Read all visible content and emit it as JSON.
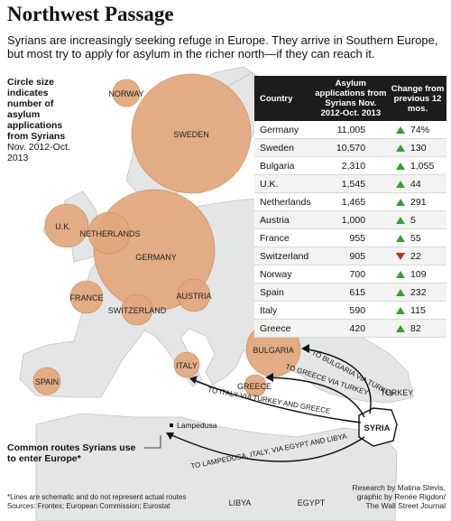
{
  "title": "Northwest Passage",
  "subtitle": "Syrians are increasingly seeking refuge in Europe. They arrive in Southern Europe, but most try to apply for asylum in the richer north—if they can reach it.",
  "key": {
    "heading": "Circle size indicates number of asylum applications from Syrians",
    "period": "Nov. 2012-Oct. 2013"
  },
  "table": {
    "headers": [
      "Country",
      "Asylum applications from Syrians Nov. 2012-Oct. 2013",
      "Change from previous 12 mos."
    ],
    "rows": [
      {
        "country": "Germany",
        "applications": "11,005",
        "change": "74%",
        "direction": "up"
      },
      {
        "country": "Sweden",
        "applications": "10,570",
        "change": "130",
        "direction": "up"
      },
      {
        "country": "Bulgaria",
        "applications": "2,310",
        "change": "1,055",
        "direction": "up"
      },
      {
        "country": "U.K.",
        "applications": "1,545",
        "change": "44",
        "direction": "up"
      },
      {
        "country": "Netherlands",
        "applications": "1,465",
        "change": "291",
        "direction": "up"
      },
      {
        "country": "Austria",
        "applications": "1,000",
        "change": "5",
        "direction": "up"
      },
      {
        "country": "France",
        "applications": "955",
        "change": "55",
        "direction": "up"
      },
      {
        "country": "Switzerland",
        "applications": "905",
        "change": "22",
        "direction": "down"
      },
      {
        "country": "Norway",
        "applications": "700",
        "change": "109",
        "direction": "up"
      },
      {
        "country": "Spain",
        "applications": "615",
        "change": "232",
        "direction": "up"
      },
      {
        "country": "Italy",
        "applications": "590",
        "change": "115",
        "direction": "up"
      },
      {
        "country": "Greece",
        "applications": "420",
        "change": "82",
        "direction": "up"
      }
    ]
  },
  "map_labels": {
    "norway": "NORWAY",
    "sweden": "SWEDEN",
    "uk": "U.K.",
    "netherlands": "NETHERLANDS",
    "germany": "GERMANY",
    "france": "FRANCE",
    "switzerland": "SWITZERLAND",
    "austria": "AUSTRIA",
    "spain": "SPAIN",
    "italy": "ITALY",
    "bulgaria": "BULGARIA",
    "greece": "GREECE",
    "turkey": "TURKEY",
    "syria": "SYRIA",
    "lampedusa": "Lampedusa",
    "libya": "LIBYA",
    "egypt": "EGYPT"
  },
  "route_labels": {
    "bulgaria": "TO BULGARIA VIA TURKEY",
    "greece": "TO GREECE VIA TURKEY",
    "italy": "TO ITALY VIA TURKEY AND GREECE",
    "lampedusa": "TO LAMPEDUSA, ITALY, VIA EGYPT AND LIBYA"
  },
  "routes_key": "Common routes Syrians use to enter Europe*",
  "footnote": {
    "lines": "*Lines are schematic and do not represent actual routes",
    "sources": "Sources: Frontex; European Commission; Eurostat"
  },
  "credit": {
    "line1": "Research by Matina Stevis,",
    "line2": "graphic by Renée Rigdon/",
    "line3": "The Wall Street Journal"
  },
  "colors": {
    "sea": "#ffffff",
    "land": "#e4e6e6",
    "land_stroke": "#bfc3c5",
    "bubble": "#e2a77c",
    "bubble_stroke": "#c98654",
    "up": "#3a9b3a",
    "down": "#c0262b",
    "header": "#1c1c1c"
  }
}
